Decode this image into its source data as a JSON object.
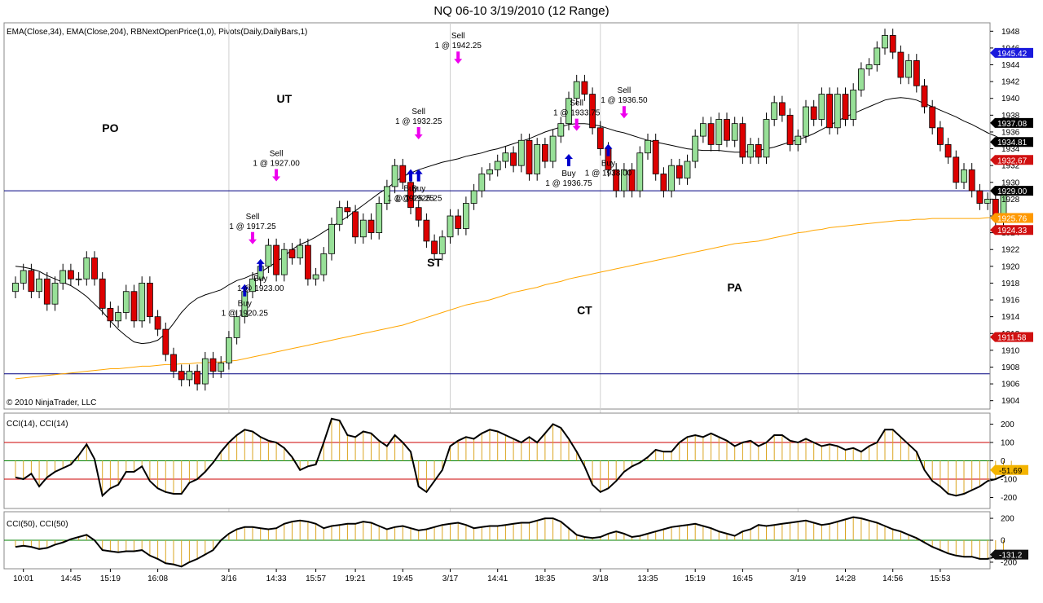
{
  "title": "NQ 06-10  3/19/2010 (12 Range)",
  "copyright": "© 2010 NinjaTrader, LLC",
  "colors": {
    "up_candle": "#98e098",
    "down_candle": "#dd0000",
    "ema34": "#000000",
    "ema204": "#ffa500",
    "pivot": "#000080",
    "buy_arrow": "#0000cc",
    "sell_arrow": "#ee00ee",
    "cci_line": "#000000",
    "cci_hist": "#daa520",
    "cci_band": "#cc0000",
    "cci_zero": "#008000"
  },
  "chart_data": [
    {
      "type": "candlestick",
      "label": "EMA(Close,34), EMA(Close,204), RBNextOpenPrice(1,0), Pivots(Daily,DailyBars,1)",
      "ylim": [
        1903,
        1949
      ],
      "y_ticks": [
        1904,
        1906,
        1908,
        1910,
        1912,
        1914,
        1916,
        1918,
        1920,
        1922,
        1924,
        1926,
        1928,
        1930,
        1932,
        1934,
        1936,
        1938,
        1940,
        1942,
        1944,
        1946,
        1948
      ],
      "x_labels": [
        {
          "i": 1,
          "t": "10:01"
        },
        {
          "i": 7,
          "t": "14:45"
        },
        {
          "i": 12,
          "t": "15:19"
        },
        {
          "i": 18,
          "t": "16:08"
        },
        {
          "i": 27,
          "t": "3/16"
        },
        {
          "i": 33,
          "t": "14:33"
        },
        {
          "i": 38,
          "t": "15:57"
        },
        {
          "i": 43,
          "t": "19:21"
        },
        {
          "i": 49,
          "t": "19:45"
        },
        {
          "i": 55,
          "t": "3/17"
        },
        {
          "i": 61,
          "t": "14:41"
        },
        {
          "i": 67,
          "t": "18:35"
        },
        {
          "i": 74,
          "t": "3/18"
        },
        {
          "i": 80,
          "t": "13:35"
        },
        {
          "i": 86,
          "t": "15:19"
        },
        {
          "i": 92,
          "t": "16:45"
        },
        {
          "i": 99,
          "t": "3/19"
        },
        {
          "i": 105,
          "t": "14:28"
        },
        {
          "i": 111,
          "t": "14:56"
        },
        {
          "i": 117,
          "t": "15:53"
        }
      ],
      "session_breaks": [
        27,
        55,
        74,
        99
      ],
      "closes": [
        1918.0,
        1919.5,
        1917.0,
        1918.5,
        1915.5,
        1918.0,
        1919.5,
        1918.5,
        1918.5,
        1921.0,
        1918.5,
        1915.0,
        1913.5,
        1914.5,
        1917.0,
        1913.5,
        1918.0,
        1914.0,
        1912.5,
        1909.5,
        1907.5,
        1906.5,
        1907.5,
        1906.0,
        1909.0,
        1907.5,
        1908.5,
        1911.5,
        1914.0,
        1917.0,
        1918.5,
        1920.0,
        1922.5,
        1919.0,
        1922.0,
        1921.0,
        1922.5,
        1918.5,
        1919.0,
        1921.5,
        1925.0,
        1927.0,
        1926.5,
        1923.5,
        1925.5,
        1924.0,
        1927.5,
        1929.5,
        1932.0,
        1930.0,
        1927.0,
        1925.5,
        1923.0,
        1921.5,
        1923.5,
        1926.0,
        1924.5,
        1927.5,
        1929.0,
        1931.0,
        1931.5,
        1932.5,
        1933.5,
        1932.0,
        1935.0,
        1931.0,
        1934.5,
        1932.5,
        1935.5,
        1937.0,
        1940.0,
        1942.0,
        1940.5,
        1936.5,
        1934.0,
        1931.5,
        1929.0,
        1931.5,
        1929.0,
        1933.5,
        1935.0,
        1931.0,
        1929.0,
        1932.0,
        1930.5,
        1932.5,
        1935.5,
        1937.0,
        1934.5,
        1937.5,
        1935.0,
        1937.0,
        1933.0,
        1934.5,
        1933.0,
        1937.5,
        1939.5,
        1938.0,
        1934.5,
        1935.5,
        1939.0,
        1937.5,
        1940.5,
        1936.5,
        1940.5,
        1937.5,
        1941.0,
        1943.5,
        1944.0,
        1946.0,
        1947.5,
        1945.5,
        1942.5,
        1944.5,
        1941.5,
        1939.0,
        1936.5,
        1934.5,
        1933.0,
        1930.0,
        1931.5,
        1929.0,
        1927.5,
        1928.0,
        1925.5,
        1928.5
      ],
      "ema34": [
        1920.0,
        1919.9,
        1919.7,
        1919.4,
        1918.9,
        1918.5,
        1918.1,
        1917.7,
        1917.1,
        1916.4,
        1915.5,
        1914.6,
        1913.5,
        1912.5,
        1911.7,
        1911.0,
        1910.8,
        1910.9,
        1911.2,
        1912.0,
        1913.2,
        1914.5,
        1915.5,
        1916.2,
        1916.6,
        1916.9,
        1917.2,
        1917.8,
        1918.3,
        1918.6,
        1919.0,
        1919.3,
        1919.9,
        1920.5,
        1921.2,
        1922.0,
        1922.6,
        1923.0,
        1923.5,
        1924.1,
        1924.7,
        1925.3,
        1925.9,
        1926.6,
        1927.3,
        1928.0,
        1928.7,
        1929.3,
        1930.0,
        1930.7,
        1931.1,
        1931.5,
        1931.8,
        1932.1,
        1932.4,
        1932.6,
        1932.8,
        1933.1,
        1933.3,
        1933.5,
        1933.8,
        1934.0,
        1934.3,
        1934.6,
        1934.9,
        1935.2,
        1935.6,
        1936.0,
        1936.3,
        1936.6,
        1936.9,
        1937.0,
        1937.0,
        1936.9,
        1936.7,
        1936.4,
        1936.1,
        1935.9,
        1935.6,
        1935.3,
        1935.0,
        1934.8,
        1934.6,
        1934.4,
        1934.2,
        1934.0,
        1933.9,
        1933.8,
        1933.8,
        1933.8,
        1933.7,
        1933.6,
        1933.6,
        1933.7,
        1933.8,
        1934.0,
        1934.2,
        1934.5,
        1934.8,
        1935.1,
        1935.4,
        1935.8,
        1936.3,
        1936.8,
        1937.3,
        1937.8,
        1938.2,
        1938.6,
        1939.0,
        1939.4,
        1939.8,
        1940.0,
        1940.1,
        1940.0,
        1939.8,
        1939.4,
        1939.0,
        1938.6,
        1938.2,
        1937.8,
        1937.3,
        1936.9,
        1936.4,
        1935.9,
        1935.5,
        1935.0
      ],
      "ema204": [
        1906.6,
        1906.7,
        1906.8,
        1906.9,
        1907.0,
        1907.1,
        1907.2,
        1907.3,
        1907.4,
        1907.5,
        1907.6,
        1907.7,
        1907.8,
        1907.8,
        1907.9,
        1908.0,
        1908.1,
        1908.1,
        1908.2,
        1908.3,
        1908.3,
        1908.4,
        1908.4,
        1908.5,
        1908.5,
        1908.6,
        1908.6,
        1908.7,
        1908.8,
        1909.0,
        1909.2,
        1909.4,
        1909.6,
        1909.8,
        1910.0,
        1910.2,
        1910.4,
        1910.6,
        1910.8,
        1911.0,
        1911.2,
        1911.4,
        1911.6,
        1911.8,
        1912.0,
        1912.2,
        1912.4,
        1912.6,
        1912.8,
        1913.0,
        1913.3,
        1913.6,
        1913.9,
        1914.2,
        1914.5,
        1914.8,
        1915.1,
        1915.4,
        1915.6,
        1915.8,
        1916.0,
        1916.3,
        1916.6,
        1916.9,
        1917.1,
        1917.3,
        1917.5,
        1917.8,
        1918.0,
        1918.2,
        1918.5,
        1918.7,
        1918.9,
        1919.1,
        1919.3,
        1919.5,
        1919.7,
        1919.9,
        1920.1,
        1920.3,
        1920.5,
        1920.7,
        1920.9,
        1921.1,
        1921.3,
        1921.5,
        1921.7,
        1921.9,
        1922.1,
        1922.3,
        1922.5,
        1922.7,
        1922.8,
        1922.9,
        1923.0,
        1923.2,
        1923.4,
        1923.6,
        1923.8,
        1924.0,
        1924.1,
        1924.3,
        1924.4,
        1924.6,
        1924.7,
        1924.8,
        1924.9,
        1925.0,
        1925.1,
        1925.2,
        1925.3,
        1925.4,
        1925.5,
        1925.5,
        1925.6,
        1925.6,
        1925.7,
        1925.7,
        1925.7,
        1925.7,
        1925.7,
        1925.7,
        1925.7,
        1925.8,
        1925.8,
        1925.8
      ],
      "pivot_lines": [
        1929.0,
        1907.2
      ],
      "price_tags": [
        {
          "label": "1945.42",
          "value": 1945.42,
          "color": "#1a1adc"
        },
        {
          "label": "1937.08",
          "value": 1937.08,
          "color": "#000000"
        },
        {
          "label": "1934.81",
          "value": 1934.81,
          "color": "#000000"
        },
        {
          "label": "1932.67",
          "value": 1932.67,
          "color": "#d01010"
        },
        {
          "label": "1929.00",
          "value": 1929.0,
          "color": "#000000"
        },
        {
          "label": "1925.76",
          "value": 1925.76,
          "color": "#ff9900"
        },
        {
          "label": "1924.33",
          "value": 1924.33,
          "color": "#d01010"
        },
        {
          "label": "1911.58",
          "value": 1911.58,
          "color": "#d01010"
        }
      ],
      "region_labels": [
        {
          "text": "PO",
          "i": 12,
          "price": 1936.0
        },
        {
          "text": "UT",
          "i": 34,
          "price": 1939.5
        },
        {
          "text": "ST",
          "i": 53,
          "price": 1920.0
        },
        {
          "text": "CT",
          "i": 72,
          "price": 1914.3
        },
        {
          "text": "PA",
          "i": 91,
          "price": 1917.0
        }
      ],
      "signals": [
        {
          "side": "Buy",
          "text": "1 @ 1920.25",
          "i": 29,
          "price": 1917.0
        },
        {
          "side": "Buy",
          "text": "1 @ 1923.00",
          "i": 31,
          "price": 1920.0
        },
        {
          "side": "Sell",
          "text": "1 @ 1917.25",
          "i": 30,
          "price": 1923.5
        },
        {
          "side": "Sell",
          "text": "1 @ 1927.00",
          "i": 33,
          "price": 1931.0
        },
        {
          "side": "Buy",
          "text": "1 @ 1925.25",
          "i": 50,
          "price": 1930.7
        },
        {
          "side": "Buy",
          "text": "1 @ 1925.25",
          "i": 51,
          "price": 1930.7
        },
        {
          "side": "Sell",
          "text": "1 @ 1932.25",
          "i": 51,
          "price": 1936.0
        },
        {
          "side": "Sell",
          "text": "1 @ 1942.25",
          "i": 56,
          "price": 1945.0
        },
        {
          "side": "Buy",
          "text": "1 @ 1936.75",
          "i": 70,
          "price": 1932.5
        },
        {
          "side": "Buy",
          "text": "1 @ 1938.00",
          "i": 75,
          "price": 1933.7
        },
        {
          "side": "Sell",
          "text": "1 @ 1933.75",
          "i": 71,
          "price": 1937.0
        },
        {
          "side": "Sell",
          "text": "1 @ 1936.50",
          "i": 77,
          "price": 1938.5
        }
      ]
    },
    {
      "type": "line+histogram",
      "label": "CCI(14), CCI(14)",
      "ylim": [
        -260,
        260
      ],
      "y_ticks": [
        200,
        100,
        0,
        -100,
        -200
      ],
      "bands": [
        100,
        -100
      ],
      "last_value": "-51.69",
      "values": [
        -90,
        -100,
        -70,
        -140,
        -90,
        -60,
        -40,
        -20,
        30,
        90,
        10,
        -190,
        -150,
        -130,
        -60,
        -60,
        -30,
        -110,
        -150,
        -170,
        -180,
        -180,
        -120,
        -100,
        -60,
        -10,
        50,
        100,
        140,
        170,
        160,
        130,
        110,
        100,
        70,
        20,
        -50,
        -30,
        -20,
        100,
        230,
        220,
        140,
        130,
        160,
        150,
        110,
        80,
        140,
        100,
        50,
        -140,
        -170,
        -110,
        -50,
        80,
        110,
        130,
        120,
        150,
        170,
        160,
        140,
        120,
        100,
        130,
        100,
        150,
        200,
        180,
        120,
        50,
        -30,
        -130,
        -170,
        -150,
        -110,
        -60,
        -30,
        -10,
        20,
        60,
        50,
        50,
        100,
        130,
        140,
        130,
        150,
        130,
        110,
        80,
        100,
        110,
        80,
        100,
        140,
        140,
        110,
        100,
        120,
        100,
        80,
        90,
        80,
        60,
        70,
        50,
        80,
        100,
        170,
        170,
        130,
        90,
        50,
        -50,
        -110,
        -140,
        -180,
        -190,
        -180,
        -160,
        -140,
        -110,
        -100,
        -80,
        -50
      ],
      "x_labels": "shared"
    },
    {
      "type": "line+histogram",
      "label": "CCI(50), CCI(50)",
      "ylim": [
        -260,
        260
      ],
      "y_ticks": [
        200,
        0,
        -200
      ],
      "last_value": "-131.2",
      "values": [
        -60,
        -50,
        -60,
        -80,
        -70,
        -40,
        -20,
        10,
        30,
        50,
        0,
        -90,
        -100,
        -110,
        -100,
        -100,
        -90,
        -140,
        -170,
        -210,
        -220,
        -240,
        -200,
        -170,
        -130,
        -90,
        0,
        60,
        100,
        120,
        120,
        110,
        100,
        110,
        150,
        170,
        180,
        170,
        150,
        110,
        130,
        140,
        150,
        150,
        170,
        160,
        130,
        100,
        120,
        130,
        110,
        90,
        100,
        120,
        140,
        150,
        160,
        140,
        110,
        120,
        130,
        130,
        140,
        150,
        160,
        160,
        180,
        200,
        200,
        170,
        110,
        50,
        30,
        20,
        30,
        60,
        80,
        60,
        30,
        40,
        60,
        80,
        100,
        120,
        130,
        140,
        150,
        130,
        110,
        80,
        60,
        40,
        80,
        100,
        140,
        130,
        140,
        150,
        160,
        170,
        180,
        160,
        140,
        150,
        170,
        190,
        210,
        200,
        180,
        160,
        130,
        100,
        80,
        50,
        20,
        -20,
        -60,
        -90,
        -120,
        -140,
        -150,
        -150,
        -170,
        -170,
        -150,
        -131
      ],
      "x_labels": "shared"
    }
  ]
}
